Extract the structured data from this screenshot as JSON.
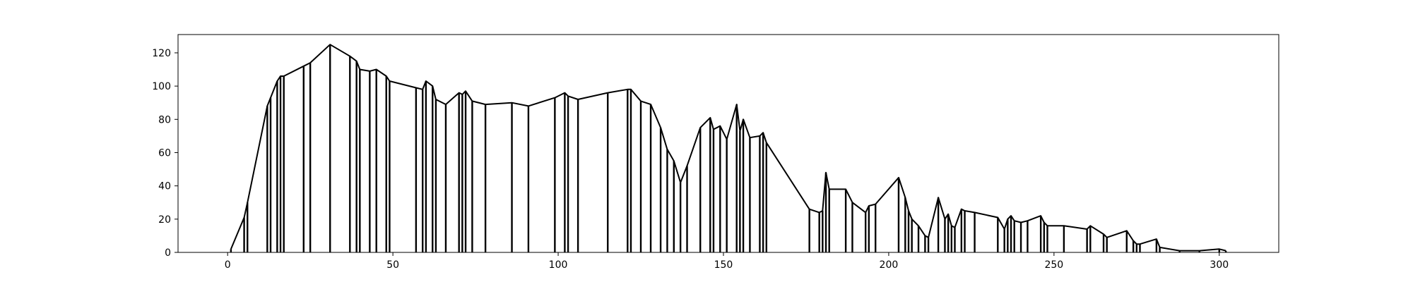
{
  "chart_data": {
    "type": "line",
    "title": "",
    "xlabel": "",
    "ylabel": "",
    "xlim": [
      -15,
      318
    ],
    "ylim": [
      0,
      131
    ],
    "xticks": [
      0,
      50,
      100,
      150,
      200,
      250,
      300
    ],
    "yticks": [
      0,
      20,
      40,
      60,
      80,
      100,
      120
    ],
    "grid": false,
    "legend": "none",
    "line_color": "#000000",
    "series": [
      {
        "x": [
          1,
          5,
          6,
          12,
          13,
          15,
          16,
          17,
          23,
          25,
          31,
          37,
          39,
          40,
          43,
          45,
          48,
          49,
          57,
          59,
          60,
          62,
          63,
          66,
          70,
          71,
          72,
          74,
          78,
          86,
          91,
          99,
          102,
          103,
          106,
          115,
          121,
          122,
          125,
          128,
          131,
          133,
          135,
          137,
          139,
          143,
          146,
          147,
          149,
          151,
          154,
          155,
          156,
          158,
          161,
          162,
          163,
          176,
          179,
          180,
          181,
          182,
          187,
          189,
          193,
          194,
          196,
          203,
          205,
          206,
          207,
          209,
          211,
          212,
          215,
          217,
          218,
          219,
          220,
          222,
          223,
          226,
          233,
          235,
          236,
          237,
          238,
          240,
          242,
          246,
          247,
          248,
          253,
          260,
          261,
          265,
          266,
          272,
          274,
          275,
          276,
          281,
          282,
          288,
          294,
          300,
          302
        ],
        "y": [
          2,
          21,
          30,
          88,
          93,
          103,
          106,
          106,
          112,
          114,
          125,
          118,
          115,
          110,
          109,
          110,
          106,
          103,
          99,
          98,
          103,
          100,
          92,
          89,
          96,
          95,
          97,
          91,
          89,
          90,
          88,
          93,
          96,
          94,
          92,
          96,
          98,
          98,
          91,
          89,
          75,
          62,
          55,
          42,
          52,
          75,
          81,
          74,
          76,
          68,
          89,
          73,
          80,
          69,
          70,
          72,
          66,
          26,
          24,
          25,
          48,
          38,
          38,
          30,
          24,
          28,
          29,
          45,
          33,
          25,
          20,
          16,
          10,
          9,
          33,
          20,
          23,
          16,
          15,
          26,
          25,
          24,
          21,
          14,
          20,
          22,
          19,
          18,
          19,
          22,
          18,
          16,
          16,
          14,
          16,
          11,
          9,
          13,
          7,
          5,
          5,
          8,
          3,
          1,
          1,
          2,
          1
        ]
      }
    ]
  }
}
